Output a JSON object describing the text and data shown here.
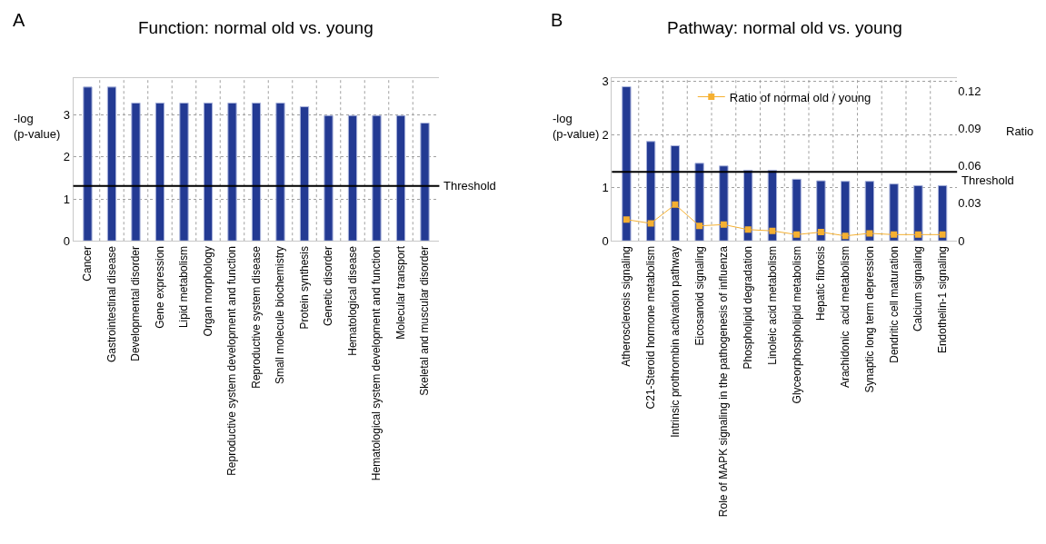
{
  "chart_data": [
    {
      "type": "bar",
      "title": "Function: normal old vs. young",
      "ylabel": "-log\n(p-value)",
      "annotations": [
        "A"
      ],
      "categories": [
        "Cancer",
        "Gastrointestinal disease",
        "Developmental disorder",
        "Gene expression",
        "Lipid metabolism",
        "Organ morphology",
        "Reproductive system development and function",
        "Reproductive system disease",
        "Small molecule biochemistry",
        "Protein synthesis",
        "Genetic disorder",
        "Hematological disease",
        "Hematological system development and function",
        "Molecular transport",
        "Skeletal and muscular disorder"
      ],
      "series": [
        {
          "color": "#233a93",
          "values": [
            3.67,
            3.67,
            3.29,
            3.29,
            3.29,
            3.29,
            3.29,
            3.29,
            3.29,
            3.2,
            2.99,
            2.99,
            2.99,
            2.99,
            2.81
          ]
        }
      ],
      "ylim": [
        0,
        3.88
      ],
      "yticks": [
        0,
        1,
        2,
        3
      ],
      "grid": true,
      "legend": false,
      "ref_lines": [
        {
          "axis": "y",
          "value": 1.31,
          "label": "Threshold",
          "color": "#000000"
        }
      ]
    },
    {
      "type": "bar",
      "title": "Pathway: normal old vs. young",
      "ylabel": "-log\n(p-value)",
      "y2label": "Ratio",
      "annotations": [
        "B"
      ],
      "categories": [
        "Atherosclerosis signaling",
        "C21-Steroid hormone metabolism",
        "Intrinsic prothrombin activation pathway",
        "Eicosanoid signaling",
        "Role of MAPK signaling in the pathogenesis of influenza",
        "Phospholipid degradation",
        "Linoleic acid metabolism",
        "Glyceorphospholipid metabolism",
        "Hepatic fibrosis",
        "Arachidonic  acid metabolism",
        "Synaptic long term depression",
        "Dendritic cell maturation",
        "Calcium signaling",
        "Endothelin-1 signaling"
      ],
      "series": [
        {
          "color": "#233a93",
          "values": [
            2.9,
            1.87,
            1.79,
            1.46,
            1.41,
            1.33,
            1.33,
            1.16,
            1.13,
            1.12,
            1.12,
            1.07,
            1.04,
            1.04
          ]
        },
        {
          "type": "line",
          "axis": "y2",
          "name": "Ratio of normal old / young",
          "color": "#f5b031",
          "marker": "square",
          "values": [
            0.017,
            0.014,
            0.029,
            0.012,
            0.013,
            0.009,
            0.008,
            0.005,
            0.007,
            0.004,
            0.006,
            0.005,
            0.005,
            0.005
          ]
        }
      ],
      "ylim": [
        0,
        3.06
      ],
      "yticks": [
        0,
        1,
        2,
        3
      ],
      "y2lim": [
        0,
        0.13
      ],
      "y2ticks": [
        0,
        0.03,
        0.06,
        0.09,
        0.12
      ],
      "grid": true,
      "legend": "top",
      "ref_lines": [
        {
          "axis": "y",
          "value": 1.3,
          "label": "Threshold",
          "color": "#000000"
        }
      ]
    }
  ]
}
